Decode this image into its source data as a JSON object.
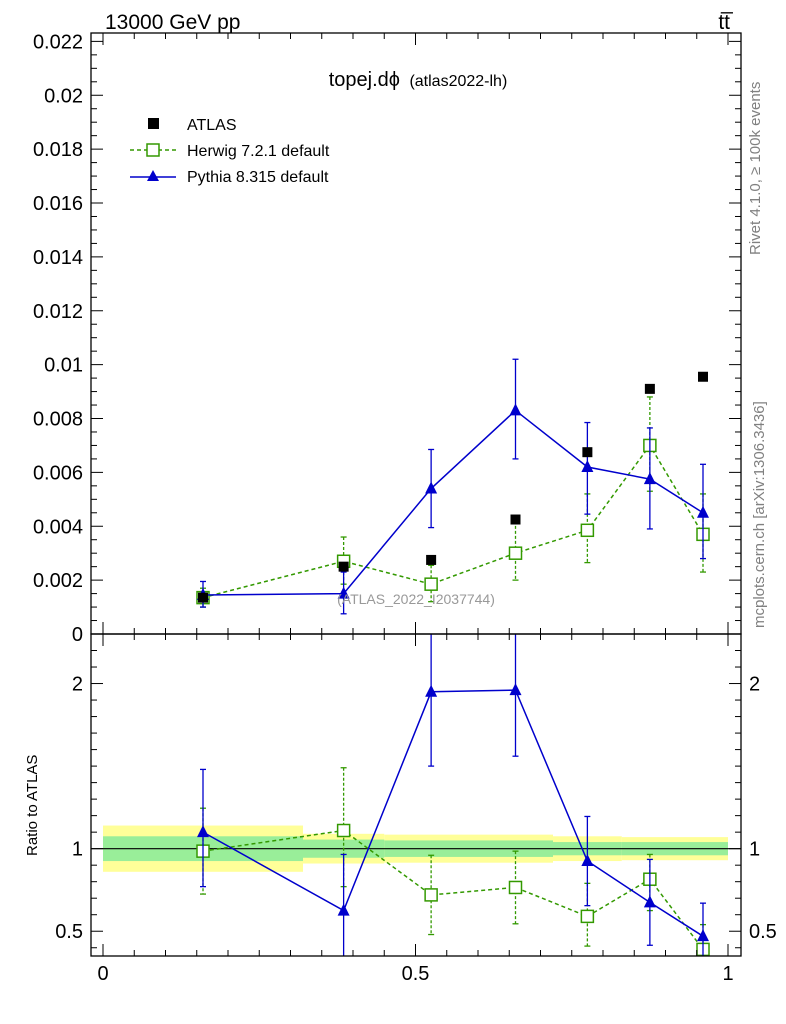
{
  "header": {
    "energy_label": "13000 GeV pp",
    "process_label": "tt̅"
  },
  "side_labels": {
    "rivet": "Rivet 4.1.0, ≥ 100k events",
    "mcplots": "mcplots.cern.ch [arXiv:1306.3436]"
  },
  "colors": {
    "atlas": "#000000",
    "herwig": "#339900",
    "pythia": "#0000cc",
    "band_inner": "#99ee99",
    "band_outer": "#ffff99"
  },
  "chart_data": {
    "type": "line",
    "title_main": "topej.dϕ",
    "title_sub": "(atlas2022-lh)",
    "watermark": "(ATLAS_2022_I2037744)",
    "xlim": [
      0,
      1
    ],
    "ylim": [
      0,
      0.0222
    ],
    "x_ticks": [
      0,
      0.5,
      1
    ],
    "x_tick_labels": [
      "0",
      "0.5",
      "1"
    ],
    "y_ticks": [
      0,
      0.002,
      0.004,
      0.006,
      0.008,
      0.01,
      0.012,
      0.014,
      0.016,
      0.018,
      0.02,
      0.022
    ],
    "y_tick_labels": [
      "0",
      "0.002",
      "0.004",
      "0.006",
      "0.008",
      "0.01",
      "0.012",
      "0.014",
      "0.016",
      "0.018",
      "0.02",
      "0.022"
    ],
    "bin_edges": [
      0,
      0.32,
      0.45,
      0.6,
      0.72,
      0.83,
      0.92,
      1.0
    ],
    "x": [
      0.16,
      0.385,
      0.525,
      0.66,
      0.775,
      0.875,
      0.96
    ],
    "series": [
      {
        "name": "ATLAS",
        "values": [
          0.00135,
          0.0025,
          0.00275,
          0.00425,
          0.00675,
          0.0091,
          0.00955
        ]
      },
      {
        "name": "Herwig 7.2.1 default",
        "values": [
          0.00135,
          0.0027,
          0.00185,
          0.003,
          0.00385,
          0.007,
          0.0037
        ],
        "err_lo": [
          0.00035,
          0.00085,
          0.00065,
          0.001,
          0.0012,
          0.0017,
          0.0014
        ],
        "err_hi": [
          0.00035,
          0.0009,
          0.0007,
          0.0012,
          0.00135,
          0.0018,
          0.0015
        ]
      },
      {
        "name": "Pythia 8.315 default",
        "values": [
          0.00145,
          0.0015,
          0.0054,
          0.0083,
          0.0062,
          0.00575,
          0.0045
        ],
        "err_lo": [
          0.00045,
          0.00075,
          0.00145,
          0.0018,
          0.00175,
          0.00185,
          0.0017
        ],
        "err_hi": [
          0.0005,
          0.0008,
          0.00145,
          0.0019,
          0.00165,
          0.0019,
          0.0018
        ]
      }
    ],
    "ratio": {
      "ylabel": "Ratio to ATLAS",
      "ylim": [
        0.35,
        2.3
      ],
      "y_ticks": [
        0.5,
        1,
        2
      ],
      "y_tick_labels": [
        "0.5",
        "1",
        "2"
      ],
      "band_inner": [
        0.075,
        0.055,
        0.05,
        0.05,
        0.04,
        0.04,
        0.04
      ],
      "band_outer": [
        0.14,
        0.09,
        0.085,
        0.085,
        0.075,
        0.07,
        0.07
      ],
      "herwig": [
        0.985,
        1.11,
        0.72,
        0.765,
        0.59,
        0.815,
        0.39
      ],
      "herwig_err_lo": [
        0.26,
        0.34,
        0.24,
        0.22,
        0.18,
        0.19,
        0.15
      ],
      "herwig_err_hi": [
        0.26,
        0.38,
        0.24,
        0.22,
        0.2,
        0.15,
        0.15
      ],
      "pythia": [
        1.1,
        0.625,
        1.95,
        1.96,
        0.925,
        0.675,
        0.47
      ],
      "pythia_err_lo": [
        0.33,
        0.3,
        0.45,
        0.4,
        0.27,
        0.26,
        0.17
      ],
      "pythia_err_hi": [
        0.38,
        0.34,
        0.45,
        0.4,
        0.27,
        0.26,
        0.2
      ]
    }
  }
}
